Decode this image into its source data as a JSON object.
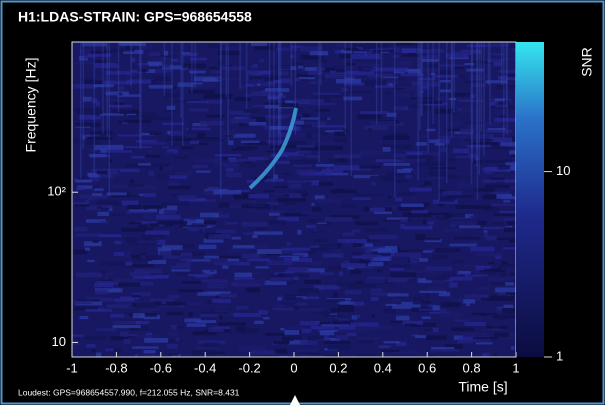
{
  "chart_data": {
    "type": "spectrogram",
    "title": "H1:LDAS-STRAIN: GPS=968654558",
    "x_label": "Time [s]",
    "y_label": "Frequency [Hz]",
    "xlim": [
      -1,
      1
    ],
    "xticks": [
      -1,
      -0.8,
      -0.6,
      -0.4,
      -0.2,
      0,
      0.2,
      0.4,
      0.6,
      0.8,
      1
    ],
    "ylim": [
      8,
      1000
    ],
    "y_log": true,
    "yticks": [
      {
        "value": 10,
        "label": "10"
      },
      {
        "value": 100,
        "label": "10²"
      }
    ],
    "colorbar": {
      "label": "SNR",
      "lim": [
        1,
        50
      ],
      "log": true,
      "ticks": [
        1,
        10
      ]
    },
    "footer": "Loudest: GPS=968654557.990, f=212.055 Hz, SNR=8.431"
  }
}
